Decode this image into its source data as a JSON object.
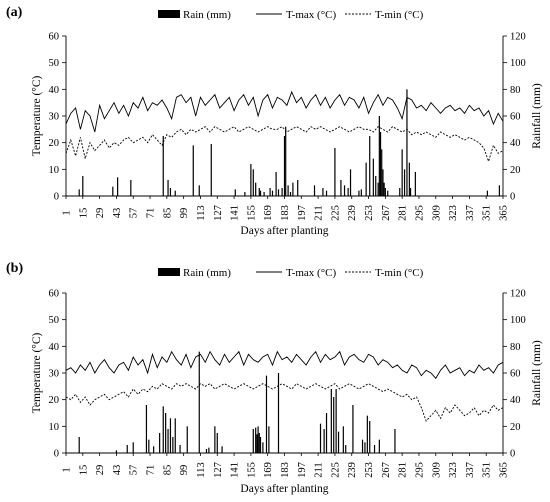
{
  "chart_data": [
    {
      "panel_label": "(a)",
      "type": "line",
      "xlabel": "Days after planting",
      "ylabel_left": "Temperature  (°C)",
      "ylabel_right": "Rainfall (mm)",
      "x_ticks": [
        "1",
        "15",
        "29",
        "43",
        "57",
        "71",
        "85",
        "99",
        "113",
        "127",
        "141",
        "155",
        "169",
        "183",
        "197",
        "211",
        "225",
        "239",
        "253",
        "267",
        "281",
        "295",
        "309",
        "323",
        "337",
        "351",
        "365"
      ],
      "xlim": [
        1,
        365
      ],
      "y_left_lim": [
        0,
        60
      ],
      "y_left_ticks": [
        "0",
        "10",
        "20",
        "30",
        "40",
        "50",
        "60"
      ],
      "y_right_lim": [
        0,
        120
      ],
      "y_right_ticks": [
        "0",
        "20",
        "40",
        "60",
        "80",
        "100",
        "120"
      ],
      "legend": {
        "rain": "Rain (mm)",
        "tmax": "T-max (°C)",
        "tmin": "T-min (°C)"
      },
      "series": [
        {
          "name": "T-max (°C)",
          "axis": "left",
          "x": [
            1,
            5,
            9,
            13,
            17,
            21,
            25,
            29,
            33,
            37,
            41,
            45,
            49,
            53,
            57,
            61,
            65,
            69,
            73,
            77,
            81,
            85,
            89,
            93,
            97,
            101,
            105,
            109,
            113,
            117,
            121,
            125,
            129,
            133,
            137,
            141,
            145,
            149,
            153,
            157,
            161,
            165,
            169,
            173,
            177,
            181,
            185,
            189,
            193,
            197,
            201,
            205,
            209,
            213,
            217,
            221,
            225,
            229,
            233,
            237,
            241,
            245,
            249,
            253,
            257,
            261,
            265,
            269,
            273,
            277,
            281,
            285,
            289,
            293,
            297,
            301,
            305,
            309,
            313,
            317,
            321,
            325,
            329,
            333,
            337,
            341,
            345,
            349,
            353,
            357,
            361,
            365
          ],
          "y": [
            27,
            31,
            33,
            25,
            32,
            30,
            24,
            34,
            29,
            32,
            35,
            31,
            34,
            30,
            35,
            33,
            37,
            32,
            35,
            34,
            36,
            33,
            29,
            37,
            38,
            35,
            37,
            30,
            37,
            34,
            36,
            38,
            33,
            35,
            37,
            32,
            36,
            38,
            34,
            37,
            30,
            36,
            38,
            33,
            37,
            36,
            34,
            39,
            35,
            37,
            33,
            36,
            38,
            34,
            37,
            33,
            36,
            38,
            34,
            37,
            36,
            33,
            37,
            31,
            35,
            38,
            34,
            37,
            36,
            33,
            29,
            37,
            36,
            33,
            34,
            32,
            35,
            33,
            31,
            33,
            34,
            32,
            33,
            31,
            34,
            32,
            33,
            30,
            32,
            27,
            31,
            28
          ]
        },
        {
          "name": "T-min (°C)",
          "axis": "left",
          "x": [
            1,
            5,
            9,
            13,
            17,
            21,
            25,
            29,
            33,
            37,
            41,
            45,
            49,
            53,
            57,
            61,
            65,
            69,
            73,
            77,
            81,
            85,
            89,
            93,
            97,
            101,
            105,
            109,
            113,
            117,
            121,
            125,
            129,
            133,
            137,
            141,
            145,
            149,
            153,
            157,
            161,
            165,
            169,
            173,
            177,
            181,
            185,
            189,
            193,
            197,
            201,
            205,
            209,
            213,
            217,
            221,
            225,
            229,
            233,
            237,
            241,
            245,
            249,
            253,
            257,
            261,
            265,
            269,
            273,
            277,
            281,
            285,
            289,
            293,
            297,
            301,
            305,
            309,
            313,
            317,
            321,
            325,
            329,
            333,
            337,
            341,
            345,
            349,
            353,
            357,
            361,
            365
          ],
          "y": [
            16,
            21,
            15,
            22,
            14,
            20,
            17,
            19,
            21,
            18,
            20,
            19,
            21,
            22,
            20,
            21,
            22,
            20,
            23,
            21,
            19,
            23,
            22,
            24,
            25,
            23,
            25,
            24,
            25,
            26,
            24,
            26,
            25,
            24,
            25,
            26,
            24,
            25,
            26,
            25,
            24,
            25,
            26,
            25,
            25,
            26,
            24,
            25,
            26,
            25,
            24,
            26,
            25,
            26,
            25,
            24,
            25,
            26,
            25,
            24,
            25,
            26,
            25,
            25,
            24,
            26,
            25,
            24,
            26,
            25,
            24,
            25,
            23,
            24,
            23,
            24,
            23,
            22,
            24,
            23,
            22,
            23,
            22,
            21,
            22,
            21,
            20,
            18,
            13,
            19,
            16,
            17
          ]
        },
        {
          "name": "Rain (mm)",
          "axis": "right",
          "type": "bar",
          "x": [
            12,
            15,
            40,
            44,
            55,
            82,
            86,
            88,
            92,
            107,
            112,
            122,
            142,
            150,
            155,
            157,
            159,
            162,
            163,
            166,
            171,
            173,
            176,
            178,
            181,
            183,
            184,
            186,
            188,
            190,
            194,
            208,
            215,
            218,
            225,
            230,
            233,
            236,
            238,
            245,
            247,
            251,
            254,
            257,
            259,
            261,
            262,
            263,
            264,
            265,
            266,
            267,
            269,
            279,
            281,
            283,
            285,
            287,
            288,
            292,
            352,
            362
          ],
          "y": [
            5,
            15,
            7,
            14,
            12,
            45,
            12,
            6,
            4,
            38,
            8,
            39,
            5,
            3,
            24,
            20,
            10,
            6,
            4,
            3,
            6,
            4,
            18,
            5,
            6,
            45,
            52,
            8,
            3,
            10,
            12,
            8,
            6,
            4,
            36,
            12,
            8,
            6,
            20,
            4,
            5,
            25,
            45,
            28,
            15,
            10,
            60,
            48,
            35,
            20,
            10,
            6,
            4,
            6,
            35,
            20,
            80,
            25,
            6,
            18,
            4,
            8
          ]
        }
      ]
    },
    {
      "panel_label": "(b)",
      "type": "line",
      "xlabel": "Days after planting",
      "ylabel_left": "Temperature  (°C)",
      "ylabel_right": "Rainfall (mm)",
      "x_ticks": [
        "1",
        "15",
        "29",
        "43",
        "57",
        "71",
        "85",
        "99",
        "113",
        "127",
        "141",
        "155",
        "169",
        "183",
        "197",
        "211",
        "225",
        "239",
        "253",
        "267",
        "281",
        "295",
        "309",
        "323",
        "337",
        "351",
        "365"
      ],
      "xlim": [
        1,
        365
      ],
      "y_left_lim": [
        0,
        60
      ],
      "y_left_ticks": [
        "0",
        "10",
        "20",
        "30",
        "40",
        "50",
        "60"
      ],
      "y_right_lim": [
        0,
        120
      ],
      "y_right_ticks": [
        "0",
        "20",
        "40",
        "60",
        "80",
        "100",
        "120"
      ],
      "legend": {
        "rain": "Rain (mm)",
        "tmax": "T-max (°C)",
        "tmin": "T-min (°C)"
      },
      "series": [
        {
          "name": "T-max (°C)",
          "axis": "left",
          "x": [
            1,
            5,
            9,
            13,
            17,
            21,
            25,
            29,
            33,
            37,
            41,
            45,
            49,
            53,
            57,
            61,
            65,
            69,
            73,
            77,
            81,
            85,
            89,
            93,
            97,
            101,
            105,
            109,
            113,
            117,
            121,
            125,
            129,
            133,
            137,
            141,
            145,
            149,
            153,
            157,
            161,
            165,
            169,
            173,
            177,
            181,
            185,
            189,
            193,
            197,
            201,
            205,
            209,
            213,
            217,
            221,
            225,
            229,
            233,
            237,
            241,
            245,
            249,
            253,
            257,
            261,
            265,
            269,
            273,
            277,
            281,
            285,
            289,
            293,
            297,
            301,
            305,
            309,
            313,
            317,
            321,
            325,
            329,
            333,
            337,
            341,
            345,
            349,
            353,
            357,
            361,
            365
          ],
          "y": [
            31,
            32,
            30,
            33,
            31,
            34,
            30,
            33,
            35,
            32,
            30,
            33,
            34,
            31,
            36,
            33,
            35,
            30,
            37,
            32,
            36,
            34,
            38,
            35,
            33,
            37,
            32,
            36,
            37,
            34,
            38,
            35,
            33,
            37,
            34,
            36,
            38,
            33,
            37,
            35,
            34,
            36,
            37,
            33,
            38,
            35,
            36,
            34,
            37,
            35,
            33,
            36,
            38,
            34,
            37,
            35,
            36,
            38,
            33,
            36,
            37,
            35,
            34,
            37,
            36,
            33,
            35,
            34,
            32,
            33,
            31,
            30,
            33,
            32,
            29,
            31,
            30,
            28,
            31,
            33,
            30,
            31,
            32,
            29,
            31,
            30,
            33,
            31,
            32,
            30,
            33,
            34
          ]
        },
        {
          "name": "T-min (°C)",
          "axis": "left",
          "x": [
            1,
            5,
            9,
            13,
            17,
            21,
            25,
            29,
            33,
            37,
            41,
            45,
            49,
            53,
            57,
            61,
            65,
            69,
            73,
            77,
            81,
            85,
            89,
            93,
            97,
            101,
            105,
            109,
            113,
            117,
            121,
            125,
            129,
            133,
            137,
            141,
            145,
            149,
            153,
            157,
            161,
            165,
            169,
            173,
            177,
            181,
            185,
            189,
            193,
            197,
            201,
            205,
            209,
            213,
            217,
            221,
            225,
            229,
            233,
            237,
            241,
            245,
            249,
            253,
            257,
            261,
            265,
            269,
            273,
            277,
            281,
            285,
            289,
            293,
            297,
            301,
            305,
            309,
            313,
            317,
            321,
            325,
            329,
            333,
            337,
            341,
            345,
            349,
            353,
            357,
            361,
            365
          ],
          "y": [
            21,
            20,
            22,
            19,
            21,
            18,
            20,
            21,
            22,
            20,
            21,
            22,
            23,
            21,
            24,
            22,
            24,
            23,
            25,
            24,
            26,
            25,
            24,
            26,
            25,
            26,
            25,
            24,
            26,
            25,
            26,
            24,
            25,
            26,
            25,
            24,
            25,
            26,
            25,
            24,
            25,
            26,
            25,
            24,
            25,
            26,
            25,
            24,
            26,
            25,
            24,
            25,
            26,
            25,
            24,
            25,
            26,
            24,
            25,
            26,
            25,
            24,
            25,
            26,
            25,
            24,
            23,
            24,
            23,
            22,
            21,
            22,
            20,
            21,
            17,
            12,
            14,
            16,
            13,
            17,
            15,
            18,
            16,
            14,
            15,
            17,
            14,
            16,
            15,
            18,
            16,
            17
          ]
        },
        {
          "name": "Rain (mm)",
          "axis": "right",
          "type": "bar",
          "x": [
            12,
            43,
            52,
            57,
            68,
            70,
            74,
            79,
            82,
            84,
            86,
            88,
            90,
            92,
            96,
            102,
            112,
            118,
            120,
            125,
            127,
            131,
            157,
            159,
            160,
            161,
            162,
            163,
            165,
            168,
            170,
            178,
            213,
            216,
            218,
            222,
            224,
            226,
            228,
            232,
            234,
            240,
            248,
            250,
            252,
            254,
            258,
            262,
            275
          ],
          "y": [
            12,
            2,
            6,
            8,
            36,
            10,
            5,
            15,
            35,
            30,
            18,
            26,
            12,
            26,
            6,
            20,
            76,
            3,
            4,
            20,
            15,
            5,
            18,
            19,
            14,
            20,
            15,
            12,
            8,
            58,
            20,
            60,
            22,
            18,
            30,
            48,
            42,
            48,
            16,
            20,
            6,
            36,
            10,
            8,
            28,
            24,
            6,
            10,
            18
          ]
        }
      ]
    }
  ]
}
